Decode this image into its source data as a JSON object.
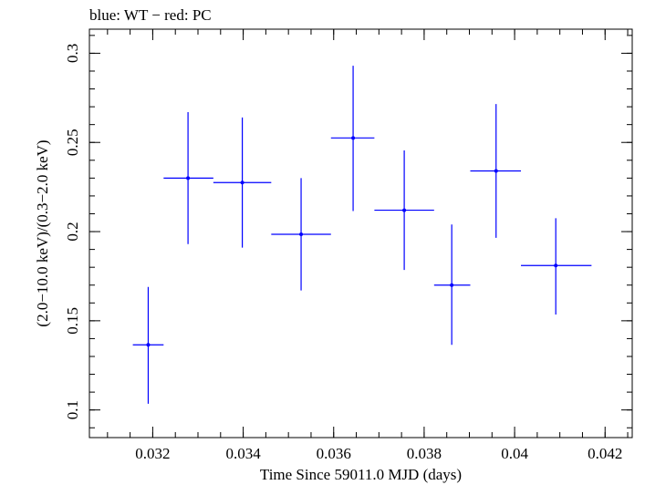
{
  "chart_data": {
    "type": "scatter",
    "title": "blue: WT − red: PC",
    "xlabel": "Time Since 59011.0 MJD (days)",
    "ylabel": "(2.0−10.0 keV)/(0.3−2.0 keV)",
    "xlim": [
      0.0306,
      0.0426
    ],
    "ylim": [
      0.0845,
      0.3135
    ],
    "x_ticks": [
      {
        "value": 0.032,
        "label": "0.032"
      },
      {
        "value": 0.034,
        "label": "0.034"
      },
      {
        "value": 0.036,
        "label": "0.036"
      },
      {
        "value": 0.038,
        "label": "0.038"
      },
      {
        "value": 0.04,
        "label": "0.04"
      },
      {
        "value": 0.042,
        "label": "0.042"
      }
    ],
    "y_ticks": [
      {
        "value": 0.1,
        "label": "0.1"
      },
      {
        "value": 0.15,
        "label": "0.15"
      },
      {
        "value": 0.2,
        "label": "0.2"
      },
      {
        "value": 0.25,
        "label": "0.25"
      },
      {
        "value": 0.3,
        "label": "0.3"
      }
    ],
    "x_minor_step": 0.0005,
    "y_minor_step": 0.01,
    "grid": false,
    "series": [
      {
        "color": "#0000ff",
        "points": [
          {
            "x": 0.0319,
            "y": 0.1365,
            "xlo": 0.03156,
            "xhi": 0.03224,
            "ylo": 0.1035,
            "yhi": 0.169
          },
          {
            "x": 0.03278,
            "y": 0.23,
            "xlo": 0.03224,
            "xhi": 0.03334,
            "ylo": 0.193,
            "yhi": 0.267
          },
          {
            "x": 0.03398,
            "y": 0.2275,
            "xlo": 0.03334,
            "xhi": 0.03462,
            "ylo": 0.191,
            "yhi": 0.264
          },
          {
            "x": 0.03528,
            "y": 0.1985,
            "xlo": 0.03462,
            "xhi": 0.03594,
            "ylo": 0.167,
            "yhi": 0.23
          },
          {
            "x": 0.03643,
            "y": 0.2525,
            "xlo": 0.03594,
            "xhi": 0.0369,
            "ylo": 0.2115,
            "yhi": 0.293
          },
          {
            "x": 0.03756,
            "y": 0.212,
            "xlo": 0.0369,
            "xhi": 0.03822,
            "ylo": 0.1785,
            "yhi": 0.2455
          },
          {
            "x": 0.03861,
            "y": 0.17,
            "xlo": 0.03822,
            "xhi": 0.03902,
            "ylo": 0.1365,
            "yhi": 0.204
          },
          {
            "x": 0.03959,
            "y": 0.234,
            "xlo": 0.03902,
            "xhi": 0.04014,
            "ylo": 0.1965,
            "yhi": 0.2715
          },
          {
            "x": 0.04091,
            "y": 0.181,
            "xlo": 0.04014,
            "xhi": 0.0417,
            "ylo": 0.1535,
            "yhi": 0.2075
          }
        ]
      }
    ]
  }
}
